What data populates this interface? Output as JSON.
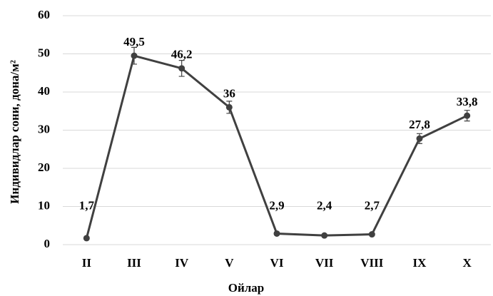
{
  "chart_data": {
    "type": "line",
    "x_label": "Ойлар",
    "y_label": "Индивидлар сони, дона/м²",
    "categories": [
      "II",
      "III",
      "IV",
      "V",
      "VI",
      "VII",
      "VIII",
      "IX",
      "X"
    ],
    "values": [
      1.7,
      49.5,
      46.2,
      36,
      2.9,
      2.4,
      2.7,
      27.8,
      33.8
    ],
    "value_labels": [
      "1,7",
      "49,5",
      "46,2",
      "36",
      "2,9",
      "2,4",
      "2,7",
      "27,8",
      "33,8"
    ],
    "errors": [
      0.3,
      2.2,
      2.1,
      1.6,
      0.3,
      0.2,
      0.3,
      1.3,
      1.4
    ],
    "color": "#404040",
    "ylim": [
      0,
      60
    ],
    "yticks": [
      0,
      10,
      20,
      30,
      40,
      50,
      60
    ],
    "grid": true
  }
}
